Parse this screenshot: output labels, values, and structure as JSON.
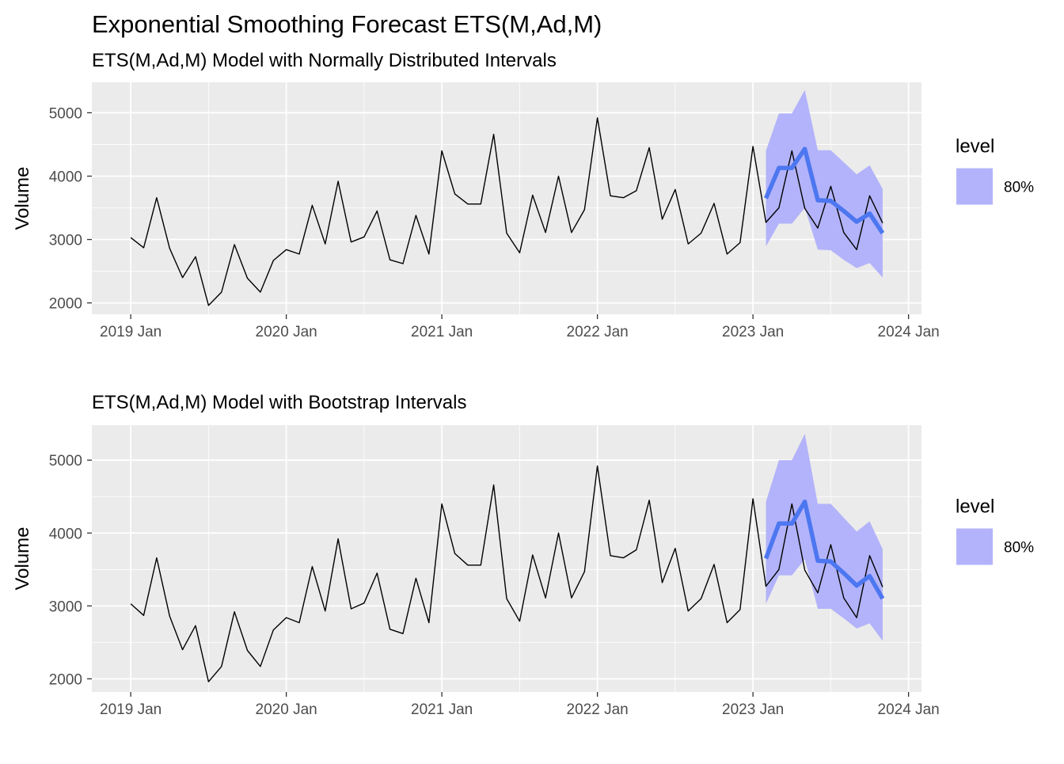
{
  "title": "Exponential Smoothing Forecast ETS(M,Ad,M)",
  "x_tick_labels": [
    "2019 Jan",
    "2020 Jan",
    "2021 Jan",
    "2022 Jan",
    "2023 Jan",
    "2024 Jan"
  ],
  "colors": {
    "panel_bg": "#ebebeb",
    "grid": "#ffffff",
    "actual_line": "#000000",
    "forecast_line": "#4d77f0",
    "interval_fill": "#b3b3fb"
  },
  "chart_data": [
    {
      "type": "line",
      "subtitle": "ETS(M,Ad,M) Model with Normally Distributed Intervals",
      "ylabel": "Volume",
      "y_ticks": [
        2000,
        3000,
        4000,
        5000
      ],
      "ylim": [
        1820,
        5480
      ],
      "xlim": [
        "2018-10",
        "2024-02"
      ],
      "grid": true,
      "legend": {
        "title": "level",
        "label": "80%",
        "position": "right"
      },
      "actual": {
        "x": [
          "2019-01",
          "2019-02",
          "2019-03",
          "2019-04",
          "2019-05",
          "2019-06",
          "2019-07",
          "2019-08",
          "2019-09",
          "2019-10",
          "2019-11",
          "2019-12",
          "2020-01",
          "2020-02",
          "2020-03",
          "2020-04",
          "2020-05",
          "2020-06",
          "2020-07",
          "2020-08",
          "2020-09",
          "2020-10",
          "2020-11",
          "2020-12",
          "2021-01",
          "2021-02",
          "2021-03",
          "2021-04",
          "2021-05",
          "2021-06",
          "2021-07",
          "2021-08",
          "2021-09",
          "2021-10",
          "2021-11",
          "2021-12",
          "2022-01",
          "2022-02",
          "2022-03",
          "2022-04",
          "2022-05",
          "2022-06",
          "2022-07",
          "2022-08",
          "2022-09",
          "2022-10",
          "2022-11",
          "2022-12",
          "2023-01",
          "2023-02",
          "2023-03",
          "2023-04",
          "2023-05",
          "2023-06",
          "2023-07",
          "2023-08",
          "2023-09",
          "2023-10",
          "2023-11"
        ],
        "y": [
          3030,
          2870,
          3660,
          2860,
          2400,
          2730,
          1960,
          2170,
          2920,
          2390,
          2170,
          2670,
          2840,
          2770,
          3540,
          2930,
          3920,
          2960,
          3040,
          3450,
          2680,
          2620,
          3380,
          2770,
          4400,
          3720,
          3560,
          3560,
          4660,
          3100,
          2790,
          3700,
          3110,
          4000,
          3110,
          3470,
          4920,
          3690,
          3660,
          3770,
          4450,
          3320,
          3790,
          2930,
          3100,
          3570,
          2770,
          2950,
          4470,
          3270,
          3500,
          4400,
          3490,
          3180,
          3840,
          3110,
          2840,
          3690,
          3260
        ]
      },
      "forecast": {
        "x": [
          "2023-02",
          "2023-03",
          "2023-04",
          "2023-05",
          "2023-06",
          "2023-07",
          "2023-08",
          "2023-09",
          "2023-10",
          "2023-11"
        ],
        "mean": [
          3650,
          4130,
          4130,
          4430,
          3620,
          3610,
          3450,
          3280,
          3410,
          3100
        ],
        "lower": [
          2890,
          3250,
          3250,
          3500,
          2840,
          2830,
          2680,
          2550,
          2630,
          2400
        ],
        "upper": [
          4400,
          4990,
          4990,
          5360,
          4410,
          4410,
          4220,
          4030,
          4170,
          3800
        ]
      }
    },
    {
      "type": "line",
      "subtitle": "ETS(M,Ad,M) Model with Bootstrap Intervals",
      "ylabel": "Volume",
      "y_ticks": [
        2000,
        3000,
        4000,
        5000
      ],
      "ylim": [
        1820,
        5480
      ],
      "xlim": [
        "2018-10",
        "2024-02"
      ],
      "grid": true,
      "legend": {
        "title": "level",
        "label": "80%",
        "position": "right"
      },
      "actual": {
        "x": [
          "2019-01",
          "2019-02",
          "2019-03",
          "2019-04",
          "2019-05",
          "2019-06",
          "2019-07",
          "2019-08",
          "2019-09",
          "2019-10",
          "2019-11",
          "2019-12",
          "2020-01",
          "2020-02",
          "2020-03",
          "2020-04",
          "2020-05",
          "2020-06",
          "2020-07",
          "2020-08",
          "2020-09",
          "2020-10",
          "2020-11",
          "2020-12",
          "2021-01",
          "2021-02",
          "2021-03",
          "2021-04",
          "2021-05",
          "2021-06",
          "2021-07",
          "2021-08",
          "2021-09",
          "2021-10",
          "2021-11",
          "2021-12",
          "2022-01",
          "2022-02",
          "2022-03",
          "2022-04",
          "2022-05",
          "2022-06",
          "2022-07",
          "2022-08",
          "2022-09",
          "2022-10",
          "2022-11",
          "2022-12",
          "2023-01",
          "2023-02",
          "2023-03",
          "2023-04",
          "2023-05",
          "2023-06",
          "2023-07",
          "2023-08",
          "2023-09",
          "2023-10",
          "2023-11"
        ],
        "y": [
          3030,
          2870,
          3660,
          2860,
          2400,
          2730,
          1960,
          2170,
          2920,
          2390,
          2170,
          2670,
          2840,
          2770,
          3540,
          2930,
          3920,
          2960,
          3040,
          3450,
          2680,
          2620,
          3380,
          2770,
          4400,
          3720,
          3560,
          3560,
          4660,
          3100,
          2790,
          3700,
          3110,
          4000,
          3110,
          3470,
          4920,
          3690,
          3660,
          3770,
          4450,
          3320,
          3790,
          2930,
          3100,
          3570,
          2770,
          2950,
          4470,
          3270,
          3500,
          4400,
          3490,
          3180,
          3840,
          3110,
          2840,
          3690,
          3260
        ]
      },
      "forecast": {
        "x": [
          "2023-02",
          "2023-03",
          "2023-04",
          "2023-05",
          "2023-06",
          "2023-07",
          "2023-08",
          "2023-09",
          "2023-10",
          "2023-11"
        ],
        "mean": [
          3650,
          4130,
          4130,
          4430,
          3620,
          3610,
          3450,
          3280,
          3410,
          3100
        ],
        "lower": [
          3030,
          3420,
          3420,
          3640,
          2960,
          2960,
          2830,
          2690,
          2760,
          2520
        ],
        "upper": [
          4430,
          5000,
          5000,
          5360,
          4400,
          4400,
          4210,
          4020,
          4160,
          3780
        ]
      }
    }
  ]
}
